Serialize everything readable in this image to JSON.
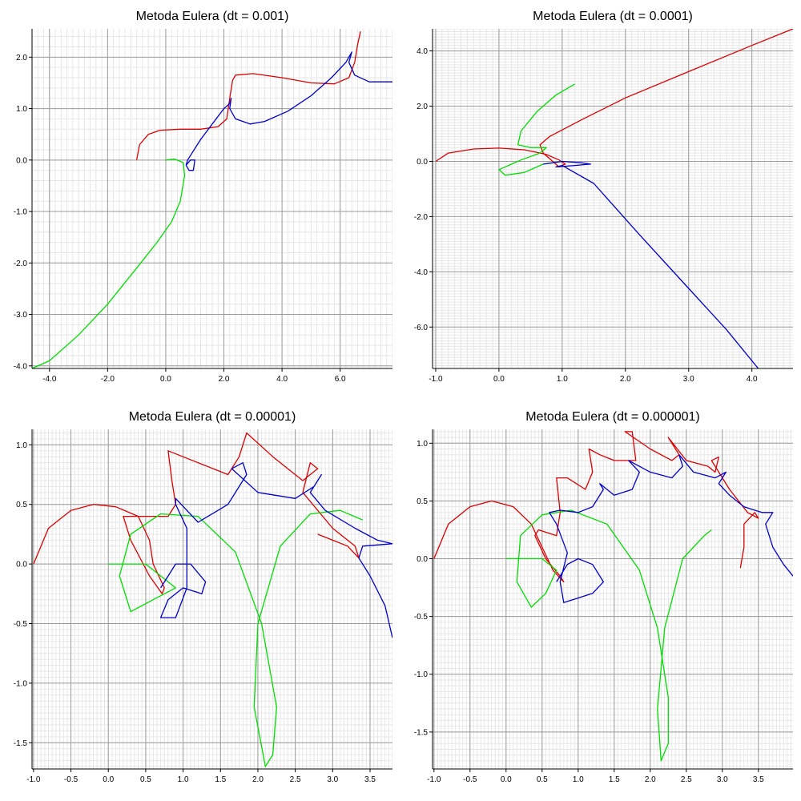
{
  "chart_data": [
    {
      "type": "line",
      "title": "Metoda Eulera (dt = 0.001)",
      "xlim": [
        -4.6,
        7.8
      ],
      "ylim": [
        -4.05,
        2.55
      ],
      "x_ticks": [
        -4,
        -2,
        0,
        2,
        4,
        6
      ],
      "x_tick_labels": [
        "-4.0",
        "-2.0",
        "0.0",
        "2.0",
        "4.0",
        "6.0"
      ],
      "y_ticks": [
        -4,
        -3,
        -2,
        -1,
        0,
        1,
        2
      ],
      "y_tick_labels": [
        "-4.0",
        "-3.0",
        "-2.0",
        "-1.0",
        "0.0",
        "1.0",
        "2.0"
      ],
      "minor_step": 0.2,
      "grid": true,
      "series": [
        {
          "color": "#dd0000",
          "x": [
            -1.0,
            -0.9,
            -0.6,
            -0.2,
            0.5,
            1.2,
            1.8,
            2.1,
            2.2,
            2.3,
            2.4,
            3.0,
            4.0,
            5.0,
            5.8,
            6.3,
            6.5,
            6.6,
            6.7
          ],
          "y": [
            0.0,
            0.3,
            0.5,
            0.58,
            0.6,
            0.6,
            0.65,
            0.8,
            1.2,
            1.55,
            1.65,
            1.68,
            1.6,
            1.5,
            1.48,
            1.6,
            1.9,
            2.25,
            2.5
          ]
        },
        {
          "color": "#00dd00",
          "x": [
            0.0,
            0.3,
            0.6,
            0.65,
            0.5,
            0.2,
            -0.3,
            -1.0,
            -2.0,
            -3.0,
            -4.0,
            -4.6
          ],
          "y": [
            0.0,
            0.02,
            -0.05,
            -0.3,
            -0.8,
            -1.2,
            -1.6,
            -2.1,
            -2.8,
            -3.4,
            -3.9,
            -4.05
          ]
        },
        {
          "color": "#0000cc",
          "x": [
            0.7,
            0.85,
            1.0,
            0.95,
            0.8,
            0.7,
            0.75,
            1.2,
            1.6,
            2.0,
            2.2,
            2.25,
            2.2,
            2.4,
            2.9,
            3.4,
            4.2,
            5.0,
            5.7,
            6.2,
            6.4,
            6.3,
            6.5,
            7.0,
            7.5,
            7.8
          ],
          "y": [
            -0.1,
            0.0,
            0.0,
            -0.2,
            -0.2,
            -0.1,
            0.0,
            0.4,
            0.7,
            1.0,
            1.1,
            1.2,
            1.0,
            0.8,
            0.7,
            0.75,
            0.95,
            1.25,
            1.6,
            1.9,
            2.1,
            1.9,
            1.65,
            1.52,
            1.52,
            1.52
          ]
        }
      ]
    },
    {
      "type": "line",
      "title": "Metoda Eulera (dt = 0.0001)",
      "xlim": [
        -1.05,
        4.65
      ],
      "ylim": [
        -7.5,
        4.8
      ],
      "x_ticks": [
        -1,
        0,
        1,
        2,
        3,
        4
      ],
      "x_tick_labels": [
        "-1.0",
        "0.0",
        "1.0",
        "2.0",
        "3.0",
        "4.0"
      ],
      "y_ticks": [
        -6,
        -4,
        -2,
        0,
        2,
        4
      ],
      "y_tick_labels": [
        "-6.0",
        "-4.0",
        "-2.0",
        "0.0",
        "2.0",
        "4.0"
      ],
      "minor_step": 0.1,
      "grid": true,
      "series": [
        {
          "color": "#dd0000",
          "x": [
            -1.0,
            -0.8,
            -0.4,
            0.0,
            0.4,
            0.75,
            0.95,
            1.05,
            0.95,
            0.7,
            0.65,
            0.8,
            1.3,
            2.0,
            3.0,
            4.0,
            4.65
          ],
          "y": [
            0.0,
            0.3,
            0.45,
            0.48,
            0.42,
            0.25,
            0.05,
            -0.1,
            -0.2,
            0.3,
            0.6,
            0.9,
            1.5,
            2.3,
            3.25,
            4.2,
            4.8
          ]
        },
        {
          "color": "#00dd00",
          "x": [
            1.2,
            0.9,
            0.6,
            0.35,
            0.3,
            0.5,
            0.75,
            0.65,
            0.35,
            0.0,
            0.1,
            0.4,
            0.7,
            1.0
          ],
          "y": [
            2.8,
            2.4,
            1.8,
            1.1,
            0.6,
            0.5,
            0.5,
            0.3,
            0.05,
            -0.3,
            -0.5,
            -0.4,
            -0.1,
            0.0
          ]
        },
        {
          "color": "#0000cc",
          "x": [
            0.7,
            1.0,
            1.3,
            1.45,
            1.2,
            0.9,
            1.0,
            1.5,
            2.2,
            3.0,
            3.6,
            4.1
          ],
          "y": [
            -0.1,
            0.0,
            -0.05,
            -0.1,
            -0.15,
            -0.2,
            -0.15,
            -0.8,
            -2.6,
            -4.6,
            -6.1,
            -7.5
          ]
        }
      ]
    },
    {
      "type": "line",
      "title": "Metoda Eulera (dt = 0.00001)",
      "xlim": [
        -1.02,
        3.8
      ],
      "ylim": [
        -1.72,
        1.13
      ],
      "x_ticks": [
        -1,
        -0.5,
        0,
        0.5,
        1,
        1.5,
        2,
        2.5,
        3,
        3.5
      ],
      "x_tick_labels": [
        "-1.0",
        "-0.5",
        "0.0",
        "0.5",
        "1.0",
        "1.5",
        "2.0",
        "2.5",
        "3.0",
        "3.5"
      ],
      "y_ticks": [
        -1.5,
        -1,
        -0.5,
        0,
        0.5,
        1
      ],
      "y_tick_labels": [
        "-1.5",
        "-1.0",
        "-0.5",
        "0.0",
        "0.5",
        "1.0"
      ],
      "minor_step": 0.05,
      "grid": true,
      "series": [
        {
          "color": "#dd0000",
          "x": [
            -1.0,
            -0.8,
            -0.5,
            -0.2,
            0.1,
            0.4,
            0.55,
            0.6,
            0.75,
            0.72,
            0.55,
            0.3,
            0.2,
            0.5,
            0.8,
            0.9,
            0.85,
            0.8,
            1.2,
            1.6,
            1.75,
            1.85,
            2.2,
            2.6,
            2.8,
            2.7,
            2.6,
            3.0,
            3.3,
            3.35,
            3.2,
            3.0,
            2.8
          ],
          "y": [
            0.0,
            0.3,
            0.45,
            0.5,
            0.48,
            0.4,
            0.2,
            0.0,
            -0.2,
            -0.25,
            -0.1,
            0.2,
            0.4,
            0.4,
            0.4,
            0.5,
            0.7,
            0.95,
            0.85,
            0.75,
            0.9,
            1.1,
            0.9,
            0.7,
            0.8,
            0.85,
            0.6,
            0.3,
            0.15,
            0.05,
            0.15,
            0.2,
            0.25
          ]
        },
        {
          "color": "#00dd00",
          "x": [
            0.0,
            0.5,
            0.9,
            0.6,
            0.3,
            0.15,
            0.3,
            0.7,
            1.2,
            1.7,
            2.05,
            2.25,
            2.2,
            2.1,
            1.95,
            2.0,
            2.3,
            2.7,
            3.1,
            3.4
          ],
          "y": [
            0.0,
            0.0,
            -0.2,
            -0.3,
            -0.4,
            -0.1,
            0.25,
            0.42,
            0.4,
            0.1,
            -0.5,
            -1.2,
            -1.6,
            -1.7,
            -1.2,
            -0.5,
            0.15,
            0.42,
            0.45,
            0.37
          ]
        },
        {
          "color": "#0000cc",
          "x": [
            0.7,
            0.9,
            1.1,
            1.3,
            1.25,
            1.0,
            0.8,
            0.7,
            0.9,
            1.05,
            1.05,
            0.9,
            0.9,
            1.2,
            1.6,
            1.85,
            1.8,
            1.65,
            2.0,
            2.5,
            2.75,
            2.85,
            2.7,
            2.9,
            3.3,
            3.6,
            3.8,
            3.4,
            3.35,
            3.5,
            3.7,
            3.8
          ],
          "y": [
            -0.2,
            0.0,
            0.0,
            -0.15,
            -0.25,
            -0.2,
            -0.3,
            -0.45,
            -0.45,
            -0.2,
            0.3,
            0.5,
            0.55,
            0.35,
            0.5,
            0.75,
            0.85,
            0.8,
            0.6,
            0.55,
            0.65,
            0.75,
            0.6,
            0.45,
            0.3,
            0.2,
            0.17,
            0.15,
            0.05,
            -0.1,
            -0.35,
            -0.62
          ]
        }
      ]
    },
    {
      "type": "line",
      "title": "Metoda Eulera (dt = 0.000001)",
      "xlim": [
        -1.02,
        3.98
      ],
      "ylim": [
        -1.82,
        1.12
      ],
      "x_ticks": [
        -1,
        -0.5,
        0,
        0.5,
        1,
        1.5,
        2,
        2.5,
        3,
        3.5
      ],
      "x_tick_labels": [
        "-1.0",
        "-0.5",
        "0.0",
        "0.5",
        "1.0",
        "1.5",
        "2.0",
        "2.5",
        "3.0",
        "3.5"
      ],
      "y_ticks": [
        -1.5,
        -1,
        -0.5,
        0,
        0.5,
        1
      ],
      "y_tick_labels": [
        "-1.5",
        "-1.0",
        "-0.5",
        "0.0",
        "0.5",
        "1.0"
      ],
      "minor_step": 0.05,
      "grid": true,
      "series": [
        {
          "color": "#dd0000",
          "x": [
            -1.0,
            -0.8,
            -0.5,
            -0.2,
            0.1,
            0.35,
            0.5,
            0.65,
            0.8,
            0.75,
            0.55,
            0.4,
            0.45,
            0.7,
            0.75,
            0.7,
            0.85,
            1.1,
            1.2,
            1.15,
            1.3,
            1.5,
            1.8,
            1.75,
            1.65,
            2.0,
            2.3,
            2.4,
            2.25,
            2.5,
            2.8,
            2.9,
            2.95,
            2.85,
            3.1,
            3.35,
            3.5,
            3.45,
            3.3,
            3.3,
            3.25
          ],
          "y": [
            0.0,
            0.3,
            0.45,
            0.5,
            0.45,
            0.3,
            0.1,
            -0.1,
            -0.2,
            -0.15,
            0.0,
            0.2,
            0.25,
            0.2,
            0.4,
            0.7,
            0.7,
            0.6,
            0.75,
            0.95,
            0.9,
            0.85,
            0.85,
            1.1,
            1.1,
            0.95,
            0.85,
            0.9,
            1.05,
            0.85,
            0.8,
            0.75,
            0.88,
            0.85,
            0.6,
            0.4,
            0.35,
            0.4,
            0.3,
            0.1,
            -0.08
          ]
        },
        {
          "color": "#00dd00",
          "x": [
            0.0,
            0.5,
            0.7,
            0.55,
            0.35,
            0.15,
            0.2,
            0.5,
            0.9,
            1.4,
            1.85,
            2.1,
            2.25,
            2.25,
            2.15,
            2.1,
            2.2,
            2.45,
            2.75,
            2.85
          ],
          "y": [
            0.0,
            0.0,
            -0.1,
            -0.3,
            -0.42,
            -0.2,
            0.2,
            0.38,
            0.42,
            0.3,
            -0.1,
            -0.6,
            -1.2,
            -1.6,
            -1.75,
            -1.3,
            -0.6,
            0.0,
            0.2,
            0.25
          ]
        },
        {
          "color": "#0000cc",
          "x": [
            0.7,
            0.85,
            1.0,
            1.2,
            1.35,
            1.2,
            0.95,
            0.8,
            0.75,
            0.85,
            0.7,
            0.6,
            0.75,
            1.0,
            1.2,
            1.35,
            1.3,
            1.5,
            1.75,
            1.85,
            1.7,
            2.0,
            2.3,
            2.45,
            2.4,
            2.6,
            2.9,
            3.05,
            2.95,
            3.1,
            3.3,
            3.45,
            3.55,
            3.7,
            3.6,
            3.7,
            3.85,
            3.98
          ],
          "y": [
            -0.2,
            -0.05,
            0.0,
            -0.05,
            -0.2,
            -0.3,
            -0.35,
            -0.38,
            -0.2,
            0.05,
            0.3,
            0.4,
            0.42,
            0.4,
            0.45,
            0.6,
            0.65,
            0.55,
            0.6,
            0.75,
            0.85,
            0.75,
            0.7,
            0.8,
            0.9,
            0.75,
            0.7,
            0.75,
            0.65,
            0.55,
            0.45,
            0.42,
            0.4,
            0.4,
            0.3,
            0.1,
            -0.05,
            -0.15
          ]
        }
      ]
    }
  ]
}
